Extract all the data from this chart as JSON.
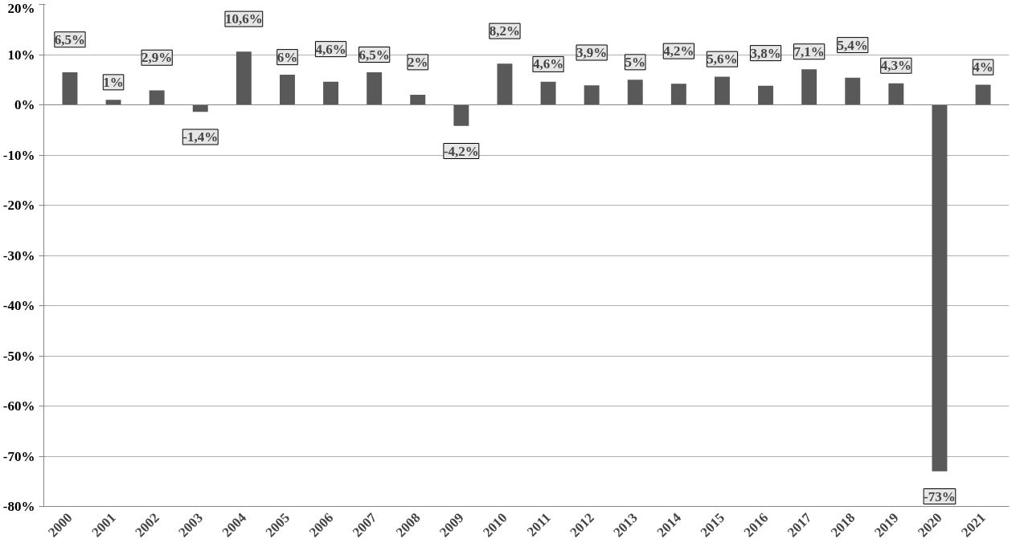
{
  "chart_data": {
    "type": "bar",
    "categories": [
      "2000",
      "2001",
      "2002",
      "2003",
      "2004",
      "2005",
      "2006",
      "2007",
      "2008",
      "2009",
      "2010",
      "2011",
      "2012",
      "2013",
      "2014",
      "2015",
      "2016",
      "2017",
      "2018",
      "2019",
      "2020",
      "2021"
    ],
    "values": [
      6.5,
      1,
      2.9,
      -1.4,
      10.6,
      6,
      4.6,
      6.5,
      2,
      -4.2,
      8.2,
      4.6,
      3.9,
      5,
      4.2,
      5.6,
      3.8,
      7.1,
      5.4,
      4.3,
      -73,
      4
    ],
    "value_labels": [
      "6,5%",
      "1%",
      "2,9%",
      "-1,4%",
      "10,6%",
      "6%",
      "4,6%",
      "6,5%",
      "2%",
      "-4,2%",
      "8,2%",
      "4,6%",
      "3,9%",
      "5%",
      "4,2%",
      "5,6%",
      "3,8%",
      "7,1%",
      "5,4%",
      "4,3%",
      "-73%",
      "4%"
    ],
    "color": "#595959",
    "ylim": [
      -80,
      20
    ],
    "yticks": [
      {
        "value": -80,
        "label": "-80%"
      },
      {
        "value": -70,
        "label": "-70%"
      },
      {
        "value": -60,
        "label": "-60%"
      },
      {
        "value": -50,
        "label": "-50%"
      },
      {
        "value": -40,
        "label": "-40%"
      },
      {
        "value": -30,
        "label": "-30%"
      },
      {
        "value": -20,
        "label": "-20%"
      },
      {
        "value": -10,
        "label": "-10%"
      },
      {
        "value": 0,
        "label": "0%"
      },
      {
        "value": 10,
        "label": "10%"
      },
      {
        "value": 20,
        "label": "20%"
      }
    ],
    "grid": "y"
  }
}
